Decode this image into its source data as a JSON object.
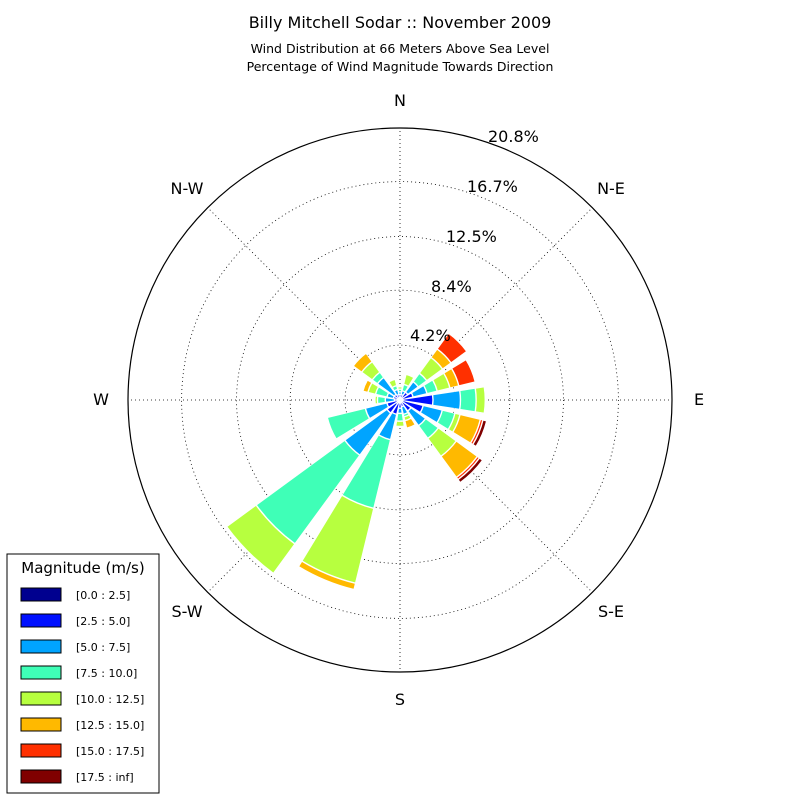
{
  "chart_data": {
    "type": "windrose",
    "title": "Billy Mitchell Sodar :: November 2009",
    "subtitle_lines": [
      "Wind Distribution at 66 Meters Above Sea Level",
      "Percentage of Wind Magnitude Towards Direction"
    ],
    "direction_labels": [
      "N",
      "N-E",
      "E",
      "S-E",
      "S",
      "S-W",
      "W",
      "N-W"
    ],
    "radial_ticks": [
      "4.2%",
      "8.4%",
      "12.5%",
      "16.7%",
      "20.8%"
    ],
    "rmax": 20.8,
    "grid": true,
    "legend_position": "lower-left",
    "legend": {
      "title": "Magnitude (m/s)",
      "bins": [
        "[0.0 : 2.5]",
        "[2.5 : 5.0]",
        "[5.0 : 7.5]",
        "[7.5 : 10.0]",
        "[10.0 : 12.5]",
        "[12.5 : 15.0]",
        "[15.0 : 17.5]",
        "[17.5 : inf]"
      ]
    },
    "bin_colors": [
      "#00008f",
      "#0010ff",
      "#00a4ff",
      "#3fffb7",
      "#b7ff3f",
      "#ffb900",
      "#ff3000",
      "#800000"
    ],
    "sectors": [
      {
        "direction_deg": 0,
        "values": [
          0.1,
          0.3,
          0.2,
          0.2,
          0.2,
          0,
          0,
          0
        ]
      },
      {
        "direction_deg": 22.5,
        "values": [
          0.1,
          0.3,
          0.3,
          0.5,
          0.8,
          0,
          0,
          0
        ]
      },
      {
        "direction_deg": 45,
        "values": [
          0.2,
          0.5,
          1.0,
          0.8,
          1.5,
          0.8,
          1.5,
          0
        ]
      },
      {
        "direction_deg": 67.5,
        "values": [
          0.2,
          0.8,
          1.1,
          0.8,
          1.0,
          0.7,
          1.3,
          0
        ]
      },
      {
        "direction_deg": 90,
        "values": [
          0.2,
          2.3,
          2.1,
          1.2,
          0.7,
          0,
          0,
          0
        ]
      },
      {
        "direction_deg": 112.5,
        "values": [
          0.2,
          1.6,
          1.5,
          1.0,
          0.4,
          1.6,
          0.2,
          0.3
        ]
      },
      {
        "direction_deg": 135,
        "values": [
          0.2,
          0.8,
          1.4,
          1.2,
          1.7,
          2.0,
          0.2,
          0.3
        ]
      },
      {
        "direction_deg": 157.5,
        "values": [
          0.2,
          0.3,
          0.6,
          0.2,
          0.3,
          0.6,
          0,
          0
        ]
      },
      {
        "direction_deg": 180,
        "values": [
          0.2,
          0.4,
          0.4,
          0.6,
          0.4,
          0,
          0,
          0
        ]
      },
      {
        "direction_deg": 202.5,
        "values": [
          0.2,
          0.9,
          2.0,
          5.4,
          5.9,
          0.5,
          0,
          0
        ]
      },
      {
        "direction_deg": 225,
        "values": [
          0.3,
          0.9,
          4.0,
          8.4,
          2.8,
          0,
          0,
          0
        ]
      },
      {
        "direction_deg": 247.5,
        "values": [
          0.2,
          0.8,
          1.7,
          3.0,
          0.1,
          0,
          0,
          0
        ]
      },
      {
        "direction_deg": 270,
        "values": [
          0.1,
          0.3,
          0.7,
          0.6,
          0.2,
          0,
          0,
          0
        ]
      },
      {
        "direction_deg": 292.5,
        "values": [
          0.1,
          0.4,
          0.5,
          0.9,
          0.6,
          0.4,
          0,
          0
        ]
      },
      {
        "direction_deg": 315,
        "values": [
          0.2,
          0.3,
          1.6,
          0.5,
          1.0,
          0.8,
          0,
          0
        ]
      },
      {
        "direction_deg": 337.5,
        "values": [
          0.1,
          0.3,
          0.4,
          0.3,
          0.5,
          0,
          0,
          0
        ]
      }
    ]
  }
}
